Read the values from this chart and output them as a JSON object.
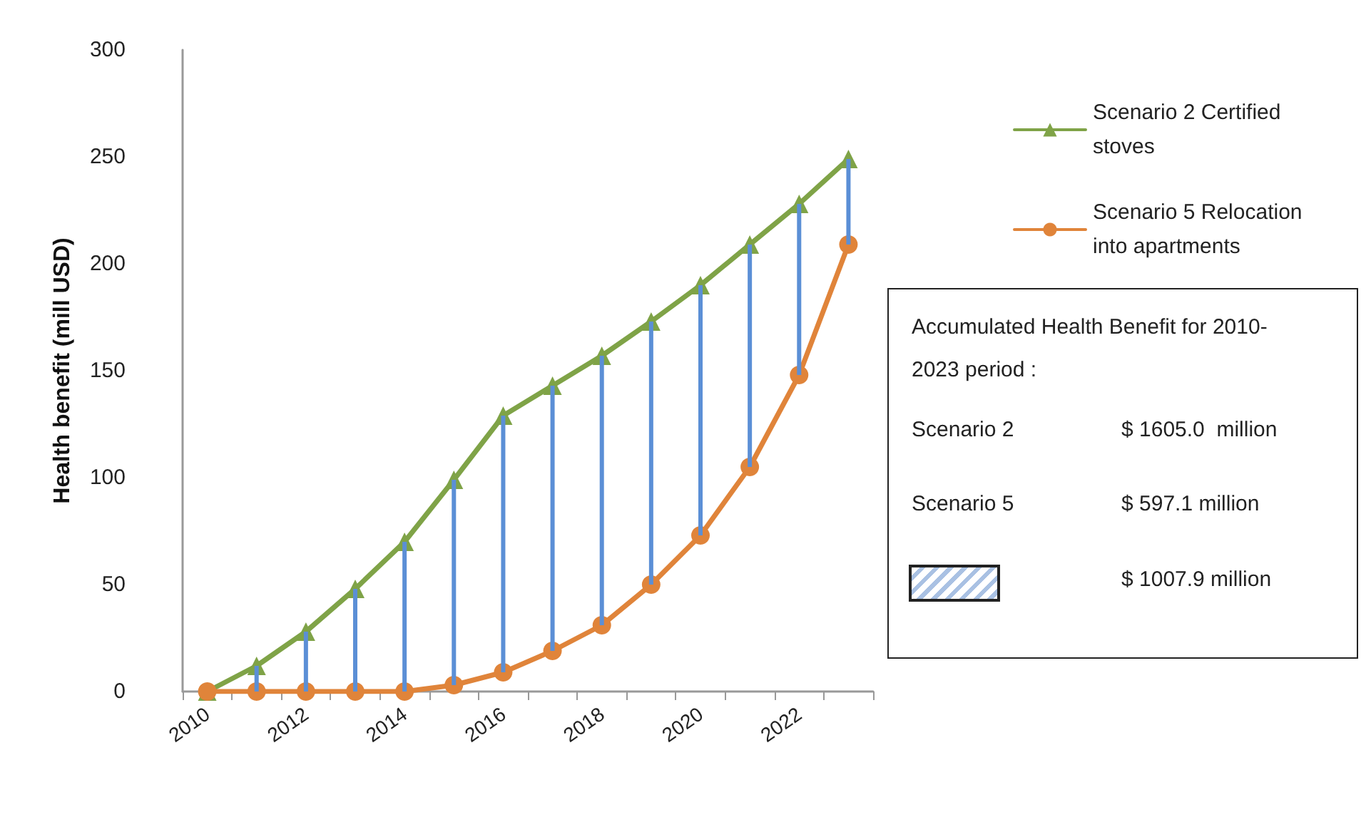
{
  "chart_data": {
    "type": "line",
    "ylabel": "Health benefit (mill USD)",
    "categories": [
      "2010",
      null,
      "2012",
      null,
      "2014",
      null,
      "2016",
      null,
      "2018",
      null,
      "2020",
      null,
      "2022",
      null
    ],
    "series": [
      {
        "name": "Scenario 2 Certified stoves",
        "color": "#7fa347",
        "marker": "triangle",
        "values": [
          0,
          12,
          28,
          48,
          70,
          99,
          129,
          143,
          157,
          173,
          190,
          209,
          228,
          249
        ]
      },
      {
        "name": "Scenario 5 Relocation into apartments",
        "color": "#e0843a",
        "marker": "circle",
        "values": [
          0,
          0,
          0,
          0,
          0,
          3,
          9,
          19,
          31,
          50,
          73,
          105,
          148,
          209
        ]
      },
      {
        "type": "bar",
        "color": "#5b8fd6",
        "base": [
          null,
          0,
          0,
          0,
          0,
          3,
          9,
          19,
          31,
          50,
          73,
          105,
          148,
          209
        ],
        "values": [
          null,
          12,
          28,
          48,
          70,
          96,
          120,
          124,
          126,
          123,
          117,
          104,
          80,
          40
        ]
      }
    ],
    "ylim": [
      0,
      300
    ],
    "yticks": [
      0,
      50,
      100,
      150,
      200,
      250,
      300
    ],
    "grid": false,
    "legend": "top right",
    "annotations": [
      "Accumulated Health Benefit for 2010-2023 period :",
      "Scenario 2",
      "$ 1605.0  million",
      "Scenario 5",
      "$ 597.1 million",
      "$ 1007.9 million"
    ]
  }
}
